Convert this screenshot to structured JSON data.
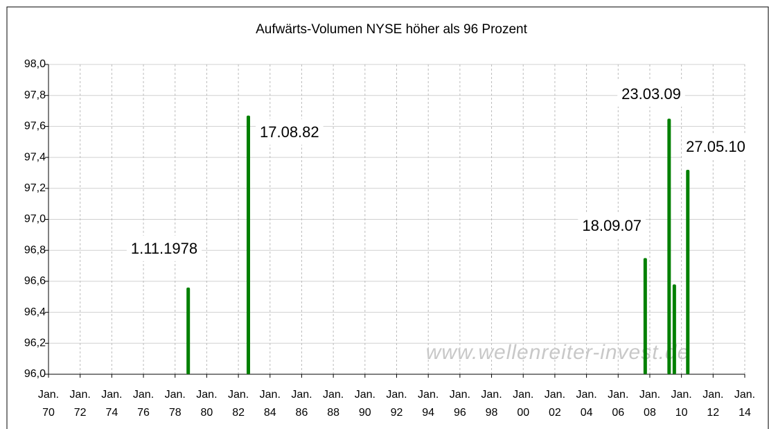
{
  "chart_data": {
    "type": "bar",
    "title": "Aufwärts-Volumen NYSE höher als 96 Prozent",
    "watermark": "www.wellenreiter-invest.de",
    "x": [
      1978.83,
      1982.63,
      2007.71,
      2009.22,
      2009.55,
      2010.4
    ],
    "values": [
      96.56,
      97.67,
      96.75,
      97.65,
      96.58,
      97.32
    ],
    "point_labels": [
      "1.11.1978",
      "17.08.82",
      "18.09.07",
      "23.03.09",
      null,
      "27.05.10"
    ],
    "color": "#008000",
    "xlim": [
      1970,
      2014
    ],
    "xticks": [
      {
        "value": 1970,
        "label": "Jan. 70"
      },
      {
        "value": 1972,
        "label": "Jan. 72"
      },
      {
        "value": 1974,
        "label": "Jan. 74"
      },
      {
        "value": 1976,
        "label": "Jan. 76"
      },
      {
        "value": 1978,
        "label": "Jan. 78"
      },
      {
        "value": 1980,
        "label": "Jan. 80"
      },
      {
        "value": 1982,
        "label": "Jan. 82"
      },
      {
        "value": 1984,
        "label": "Jan. 84"
      },
      {
        "value": 1986,
        "label": "Jan. 86"
      },
      {
        "value": 1988,
        "label": "Jan. 88"
      },
      {
        "value": 1990,
        "label": "Jan. 90"
      },
      {
        "value": 1992,
        "label": "Jan. 92"
      },
      {
        "value": 1994,
        "label": "Jan. 94"
      },
      {
        "value": 1996,
        "label": "Jan. 96"
      },
      {
        "value": 1998,
        "label": "Jan. 98"
      },
      {
        "value": 2000,
        "label": "Jan. 00"
      },
      {
        "value": 2002,
        "label": "Jan. 02"
      },
      {
        "value": 2004,
        "label": "Jan. 04"
      },
      {
        "value": 2006,
        "label": "Jan. 06"
      },
      {
        "value": 2008,
        "label": "Jan. 08"
      },
      {
        "value": 2010,
        "label": "Jan. 10"
      },
      {
        "value": 2012,
        "label": "Jan. 12"
      },
      {
        "value": 2014,
        "label": "Jan. 14"
      }
    ],
    "ylim": [
      96.0,
      98.0
    ],
    "yticks": [
      {
        "value": 96.0,
        "label": "96,0"
      },
      {
        "value": 96.2,
        "label": "96,2"
      },
      {
        "value": 96.4,
        "label": "96,4"
      },
      {
        "value": 96.6,
        "label": "96,6"
      },
      {
        "value": 96.8,
        "label": "96,8"
      },
      {
        "value": 97.0,
        "label": "97,0"
      },
      {
        "value": 97.2,
        "label": "97,2"
      },
      {
        "value": 97.4,
        "label": "97,4"
      },
      {
        "value": 97.6,
        "label": "97,6"
      },
      {
        "value": 97.8,
        "label": "97,8"
      },
      {
        "value": 98.0,
        "label": "98,0"
      }
    ],
    "grid": true
  }
}
